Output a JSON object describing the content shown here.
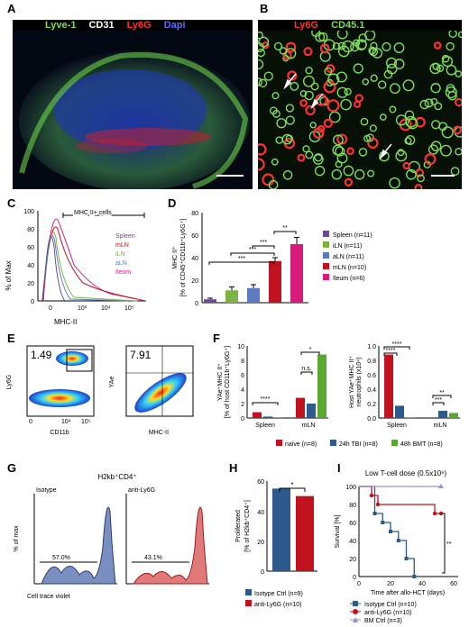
{
  "panels": {
    "A": {
      "label": "A",
      "stains": [
        "Lyve-1",
        "CD31",
        "Ly6G",
        "Dapi"
      ],
      "stain_colors": [
        "#7ddc5a",
        "#ffffff",
        "#ff3030",
        "#5a6cff"
      ]
    },
    "B": {
      "label": "B",
      "stains": [
        "Ly6G",
        "CD45.1"
      ],
      "stain_colors": [
        "#ff3030",
        "#7ddc5a"
      ]
    },
    "C": {
      "label": "C",
      "xlabel": "MHC-II",
      "ylabel": "% of Max",
      "bracket": "MHC II+ cells",
      "yticks": [
        "100",
        "80",
        "60",
        "40",
        "20",
        "0"
      ],
      "xticks": [
        "0",
        "10³",
        "10⁴",
        "10⁵"
      ],
      "legend": [
        {
          "name": "Spleen",
          "color": "#6a4c93"
        },
        {
          "name": "mLN",
          "color": "#c1121f"
        },
        {
          "name": "iLN",
          "color": "#7cb342"
        },
        {
          "name": "aLN",
          "color": "#5c7cbf"
        },
        {
          "name": "Ileum",
          "color": "#d81b7a"
        }
      ]
    },
    "D": {
      "label": "D",
      "ylabel": "MHC II⁺",
      "ylabel2": "[% of CD45⁺CD11b⁺Ly6G⁺]",
      "yticks": [
        "0",
        "20",
        "40",
        "60",
        "80"
      ],
      "sig": [
        "**",
        "***",
        "***",
        "***"
      ],
      "legend": [
        "Spleen (n=11)",
        "iLN (n=11)",
        "aLN (n=11)",
        "mLN (n=10)",
        "Ileum (n=6)"
      ]
    },
    "E": {
      "label": "E",
      "plot1": {
        "xlabel": "CD11b",
        "ylabel": "Ly6G",
        "pct": "1.49"
      },
      "plot2": {
        "xlabel": "MHC-II",
        "ylabel": "YAe",
        "pct": "7.91"
      },
      "ticks": [
        "0",
        "10⁴",
        "10⁵"
      ]
    },
    "F": {
      "label": "F",
      "left": {
        "ylabel": "YAe⁺MHC II⁺",
        "ylabel2": "[% of host CD11b⁺Ly6G⁺]",
        "yticks": [
          "0",
          "2",
          "4",
          "6",
          "8",
          "10"
        ],
        "groups": [
          "Spleen",
          "mLN"
        ],
        "sig": [
          "*",
          "****",
          "n.s."
        ]
      },
      "right": {
        "ylabel": "Host YAe⁺MHC II⁺",
        "ylabel2": "neutrophils (x10⁴)",
        "yticks": [
          "0.0",
          "0.2",
          "0.4",
          "0.6",
          "0.8",
          "1.0"
        ],
        "groups": [
          "Spleen",
          "mLN"
        ],
        "sig": [
          "****",
          "****",
          "***",
          "**"
        ]
      },
      "legend": [
        "naive (n=8)",
        "24h TBI (n=8)",
        "48h BMT (n=8)"
      ]
    },
    "G": {
      "label": "G",
      "title": "H2kb⁺CD4⁺",
      "left": {
        "name": "Isotype",
        "pct": "57.0%"
      },
      "right": {
        "name": "anti-Ly6G",
        "pct": "43.1%"
      },
      "xlabel": "Cell trace violet",
      "ylabel": "% of max"
    },
    "H": {
      "label": "H",
      "ylabel": "Proliferated",
      "ylabel2": "[% of H2kb⁺CD4⁺]",
      "yticks": [
        "0",
        "20",
        "40",
        "60"
      ],
      "sig": "*",
      "legend": [
        "Isotype Ctrl (n=9)",
        "anti-Ly6G (n=10)"
      ]
    },
    "I": {
      "label": "I",
      "title": "Low T-cell dose (0.5x10⁶)",
      "ylabel": "Survival [%]",
      "xlabel": "Time after allo-HCT (days)",
      "yticks": [
        "0",
        "20",
        "40",
        "60",
        "80",
        "100"
      ],
      "xticks": [
        "0",
        "20",
        "40",
        "60"
      ],
      "sig": "**",
      "legend": [
        "Isotype Ctrl (n=10)",
        "anti-Ly6G (n=10)",
        "BM Ctrl (n=3)"
      ]
    }
  },
  "chart_data": [
    {
      "type": "bar",
      "title": "",
      "ylabel": "MHC II⁺ [% of CD45⁺CD11b⁺Ly6G⁺]",
      "ylim": [
        0,
        80
      ],
      "categories": [
        "Spleen",
        "iLN",
        "aLN",
        "mLN",
        "Ileum"
      ],
      "values": [
        3,
        11,
        13,
        37,
        52
      ],
      "errors": [
        1,
        3,
        3,
        3,
        6
      ]
    },
    {
      "type": "bar",
      "ylabel": "YAe⁺MHC II⁺ [% of host CD11b⁺Ly6G⁺]",
      "ylim": [
        0,
        10
      ],
      "categories": [
        "Spleen",
        "mLN"
      ],
      "series": [
        {
          "name": "naive (n=8)",
          "values": [
            0.8,
            2.8
          ]
        },
        {
          "name": "24h TBI (n=8)",
          "values": [
            0.2,
            2.0
          ]
        },
        {
          "name": "48h BMT (n=8)",
          "values": [
            0.1,
            8.8
          ]
        }
      ]
    },
    {
      "type": "bar",
      "ylabel": "Host YAe⁺MHC II⁺ neutrophils (x10⁴)",
      "ylim": [
        0,
        1.0
      ],
      "categories": [
        "Spleen",
        "mLN"
      ],
      "series": [
        {
          "name": "naive (n=8)",
          "values": [
            0.88,
            0.0
          ]
        },
        {
          "name": "24h TBI (n=8)",
          "values": [
            0.17,
            0.1
          ]
        },
        {
          "name": "48h BMT (n=8)",
          "values": [
            0.01,
            0.07
          ]
        }
      ]
    },
    {
      "type": "bar",
      "ylabel": "Proliferated [% of H2kb⁺CD4⁺]",
      "ylim": [
        0,
        60
      ],
      "categories": [
        "Isotype Ctrl (n=9)",
        "anti-Ly6G (n=10)"
      ],
      "values": [
        55,
        50
      ]
    },
    {
      "type": "line",
      "title": "Low T-cell dose (0.5x10⁶)",
      "xlabel": "Time after allo-HCT (days)",
      "ylabel": "Survival [%]",
      "xlim": [
        0,
        60
      ],
      "ylim": [
        0,
        100
      ],
      "series": [
        {
          "name": "Isotype Ctrl (n=10)",
          "x": [
            0,
            10,
            15,
            20,
            25,
            30,
            35
          ],
          "y": [
            100,
            70,
            60,
            50,
            40,
            20,
            0
          ]
        },
        {
          "name": "anti-Ly6G (n=10)",
          "x": [
            0,
            8,
            12,
            48,
            52
          ],
          "y": [
            100,
            90,
            80,
            70,
            70
          ]
        },
        {
          "name": "BM Ctrl (n=3)",
          "x": [
            0,
            52
          ],
          "y": [
            100,
            100
          ]
        }
      ]
    }
  ]
}
